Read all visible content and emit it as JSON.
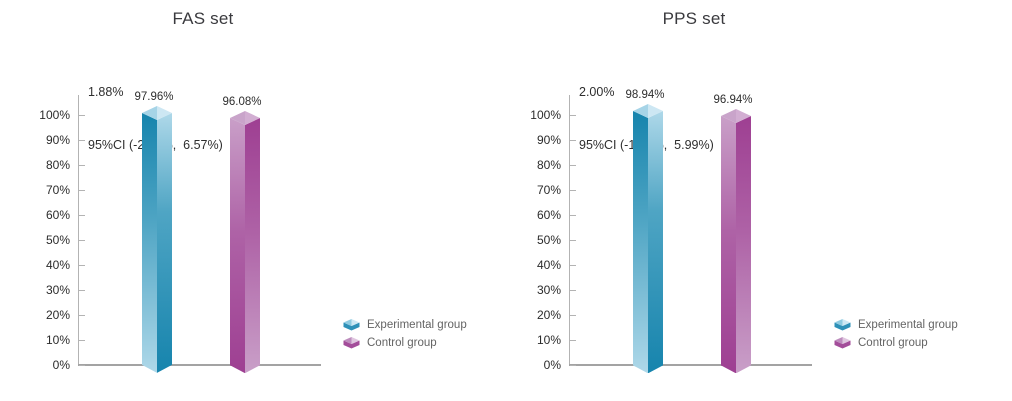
{
  "chart_data": [
    {
      "type": "bar",
      "title": "FAS set",
      "difference_label": "1.88%",
      "ci_label": "95%CI (-2.81%,  6.57%)",
      "categories": [
        "Experimental group",
        "Control group"
      ],
      "values": [
        97.96,
        96.08
      ],
      "value_labels": [
        "97.96%",
        "96.08%"
      ],
      "ylim": [
        0,
        100
      ],
      "ytick_labels": [
        "100%",
        "90%",
        "80%",
        "70%",
        "60%",
        "50%",
        "40%",
        "30%",
        "20%",
        "10%",
        "0%"
      ],
      "grid": false,
      "legend_position": "right-bottom",
      "legend": [
        "Experimental group",
        "Control group"
      ]
    },
    {
      "type": "bar",
      "title": "PPS set",
      "difference_label": "2.00%",
      "ci_label": "95%CI (-1.99%,  5.99%)",
      "categories": [
        "Experimental group",
        "Control group"
      ],
      "values": [
        98.94,
        96.94
      ],
      "value_labels": [
        "98.94%",
        "96.94%"
      ],
      "ylim": [
        0,
        100
      ],
      "ytick_labels": [
        "100%",
        "90%",
        "80%",
        "70%",
        "60%",
        "50%",
        "40%",
        "30%",
        "20%",
        "10%",
        "0%"
      ],
      "grid": false,
      "legend_position": "right-bottom",
      "legend": [
        "Experimental group",
        "Control group"
      ]
    }
  ],
  "series_styles": [
    {
      "key": "experimental",
      "face_dark": "#1684ad",
      "face_mid": "#4fa5c4",
      "face_light": "#aed8e9",
      "cap_left": "#a6d4e7",
      "cap_right": "#cde7f3",
      "legend_front": "#2e91b8",
      "legend_top_left": "#8fcbe1",
      "legend_top_right": "#cde8f3",
      "left_face_dark_on_top": true
    },
    {
      "key": "control",
      "face_dark": "#9e3f92",
      "face_mid": "#ae62a6",
      "face_light": "#c99fc8",
      "cap_left": "#c9a4ca",
      "cap_right": "#d2aed2",
      "legend_front": "#a34d9a",
      "legend_top_left": "#bd8cbd",
      "legend_top_right": "#dfc6df",
      "left_face_dark_on_top": false
    }
  ],
  "axis_colors": {
    "line": "#b3b3b3",
    "baseline": "#a3a3a3",
    "tick_text": "#2b2b2b",
    "title_text": "#3a3a3e",
    "legend_text": "#646464"
  }
}
